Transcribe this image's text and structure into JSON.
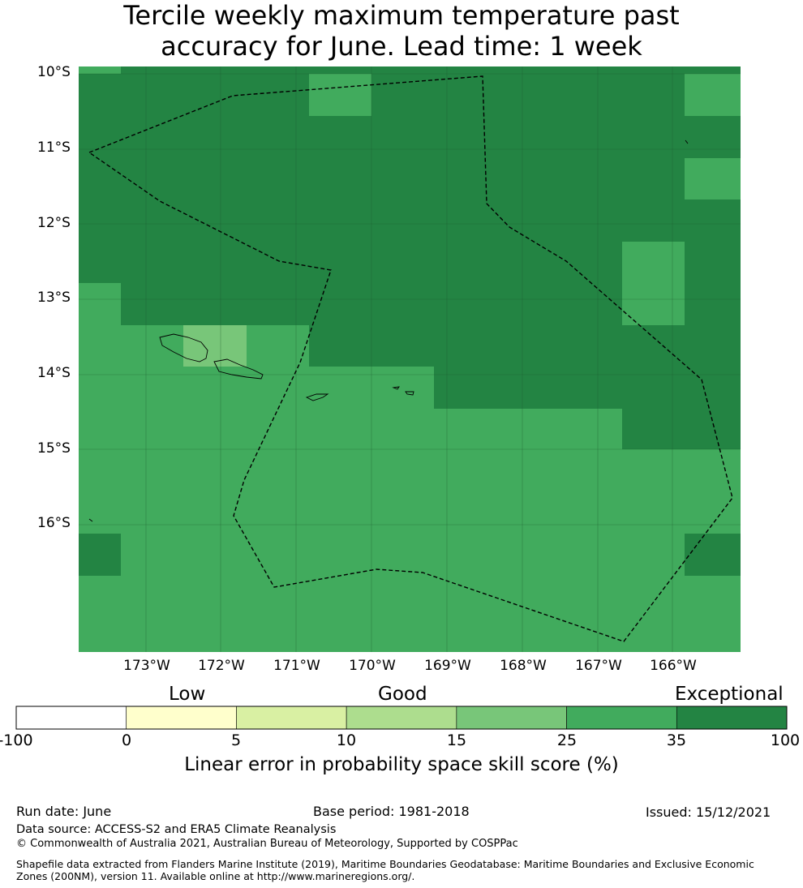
{
  "title_line1": "Tercile weekly maximum temperature past",
  "title_line2": "accuracy for June. Lead time: 1 week",
  "lat_labels": [
    "10°S",
    "11°S",
    "12°S",
    "13°S",
    "14°S",
    "15°S",
    "16°S"
  ],
  "lon_labels": [
    "173°W",
    "172°W",
    "171°W",
    "170°W",
    "169°W",
    "168°W",
    "167°W",
    "166°W"
  ],
  "colorbar": {
    "categories": [
      "Low",
      "Good",
      "Exceptional"
    ],
    "ticks": [
      "-100",
      "0",
      "5",
      "10",
      "15",
      "25",
      "35",
      "100"
    ],
    "colors": [
      "#ffffff",
      "#ffffcc",
      "#d9f0a3",
      "#addd8e",
      "#78c679",
      "#41ab5d",
      "#238443"
    ],
    "label": "Linear error in probability space skill score (%)"
  },
  "map_colors": {
    "exceptional": "#238443",
    "good_high": "#41ab5d",
    "good": "#78c679"
  },
  "footer": {
    "run_date": "Run date: June",
    "base_period": "Base period: 1981-2018",
    "issued": "Issued: 15/12/2021",
    "data_source": "Data source: ACCESS-S2 and ERA5 Climate Reanalysis",
    "copyright": "© Commonwealth of Australia 2021, Australian Bureau of Meteorology, Supported by COSPPac",
    "shapefile": "Shapefile data extracted from Flanders Marine Institute (2019), Maritime Boundaries Geodatabase: Maritime Boundaries and Exclusive Economic Zones (200NM), version 11. Available online at http://www.marineregions.org/."
  }
}
